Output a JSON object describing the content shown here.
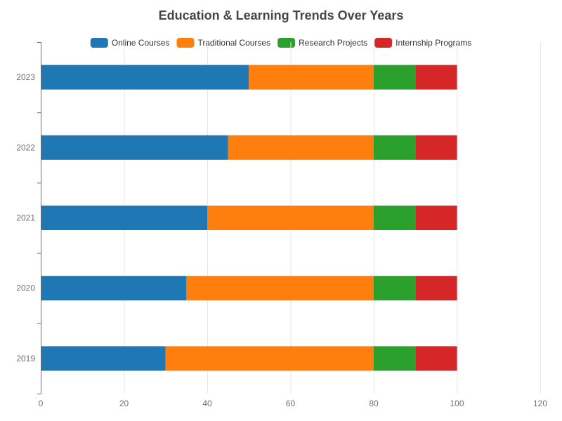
{
  "chart_data": {
    "type": "bar",
    "orientation": "horizontal",
    "stacked": true,
    "title": "Education & Learning Trends Over Years",
    "categories": [
      "2019",
      "2020",
      "2021",
      "2022",
      "2023"
    ],
    "series": [
      {
        "name": "Online Courses",
        "color": "#1f77b4",
        "values": [
          30,
          35,
          40,
          45,
          50
        ]
      },
      {
        "name": "Traditional Courses",
        "color": "#ff7f0e",
        "values": [
          50,
          45,
          40,
          35,
          30
        ]
      },
      {
        "name": "Research Projects",
        "color": "#2ca02c",
        "values": [
          10,
          10,
          10,
          10,
          10
        ]
      },
      {
        "name": "Internship Programs",
        "color": "#d62728",
        "values": [
          10,
          10,
          10,
          10,
          10
        ]
      }
    ],
    "xlim": [
      0,
      120
    ],
    "xticks": [
      0,
      20,
      40,
      60,
      80,
      100,
      120
    ],
    "grid": true,
    "legend": "top"
  }
}
